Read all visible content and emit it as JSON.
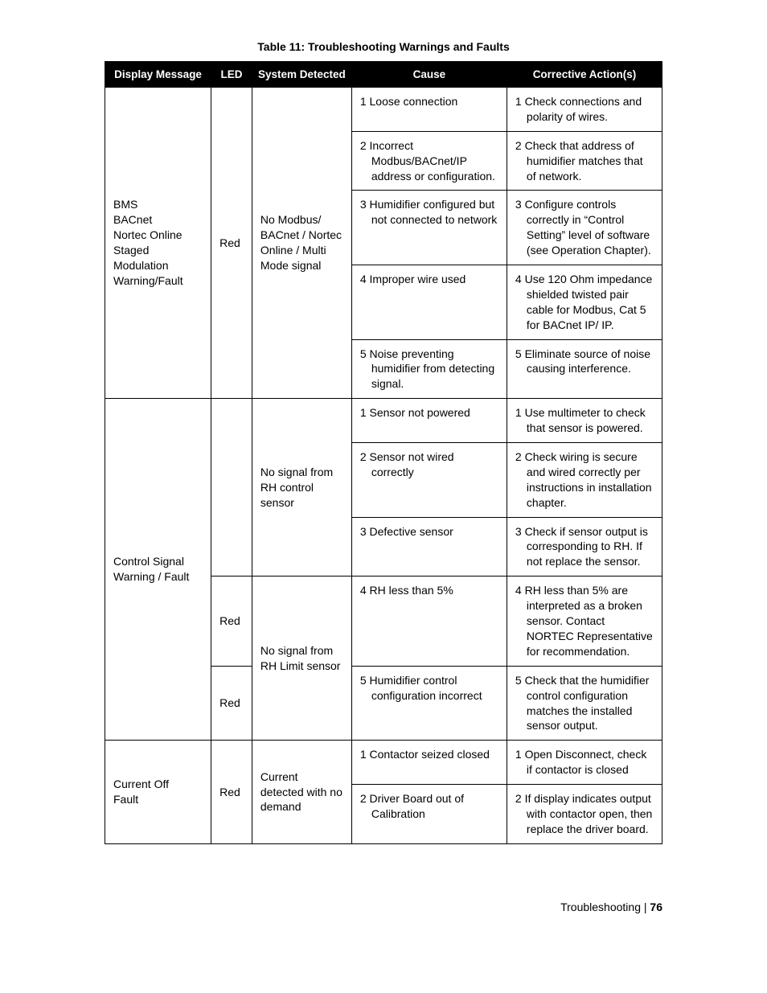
{
  "title": "Table 11: Troubleshooting Warnings and Faults",
  "headers": {
    "display": "Display Message",
    "led": "LED",
    "system": "System Detected",
    "cause": "Cause",
    "action": "Corrective Action(s)"
  },
  "groups": [
    {
      "display": "BMS\nBACnet\nNortec Online\nStaged Modulation\nWarning/Fault",
      "led": "Red",
      "system": "No Modbus/ BACnet / Nortec Online / Multi Mode signal",
      "rows": [
        {
          "cause": "1 Loose connection",
          "action": "1 Check connections and polarity of wires."
        },
        {
          "cause": "2 Incorrect Modbus/BACnet/IP address or configuration.",
          "action": "2 Check that address of humidifier matches that of network."
        },
        {
          "cause": "3 Humidifier configured but not connected to network",
          "action": "3 Configure controls correctly in “Control Setting” level of software (see Operation Chapter)."
        },
        {
          "cause": "4 Improper wire used",
          "action": "4 Use 120 Ohm impedance shielded twisted pair cable for Modbus, Cat 5 for BACnet IP/ IP."
        },
        {
          "cause": "5 Noise preventing humidifier from detecting signal.",
          "action": "5 Eliminate source of noise causing interference."
        }
      ]
    },
    {
      "display": "Control Signal Warning / Fault",
      "subblocks": [
        {
          "led": "",
          "system": "No signal from RH control sensor",
          "rows": [
            {
              "cause": "1 Sensor not powered",
              "action": "1 Use multimeter to check that sensor is powered."
            },
            {
              "cause": "2 Sensor not wired correctly",
              "action": "2 Check wiring is secure and wired correctly per instructions in installation chapter."
            },
            {
              "cause": "3 Defective sensor",
              "action": "3 Check if sensor output is corresponding to RH. If not replace the sensor."
            }
          ]
        },
        {
          "led": "Red",
          "system": "No signal from RH Limit sensor",
          "system_span": 2,
          "rows": [
            {
              "cause": "4 RH less than 5%",
              "action": "4 RH less than 5% are interpreted as a broken sensor.  Contact NORTEC Representative for recommendation."
            }
          ]
        },
        {
          "led": "Red",
          "rows": [
            {
              "cause": "5 Humidifier control configuration incorrect",
              "action": "5 Check that the humidifier control configuration matches the installed sensor output."
            }
          ]
        }
      ]
    },
    {
      "display": "Current Off Fault",
      "led": "Red",
      "system": "Current detected with no demand",
      "rows": [
        {
          "cause": "1 Contactor seized closed",
          "action": "1 Open Disconnect, check if contactor is closed"
        },
        {
          "cause": "2 Driver Board out of Calibration",
          "action": "2 If display indicates output with contactor open, then replace the driver board."
        }
      ]
    }
  ],
  "footer": {
    "section": "Troubleshooting",
    "sep": " | ",
    "page": "76"
  }
}
